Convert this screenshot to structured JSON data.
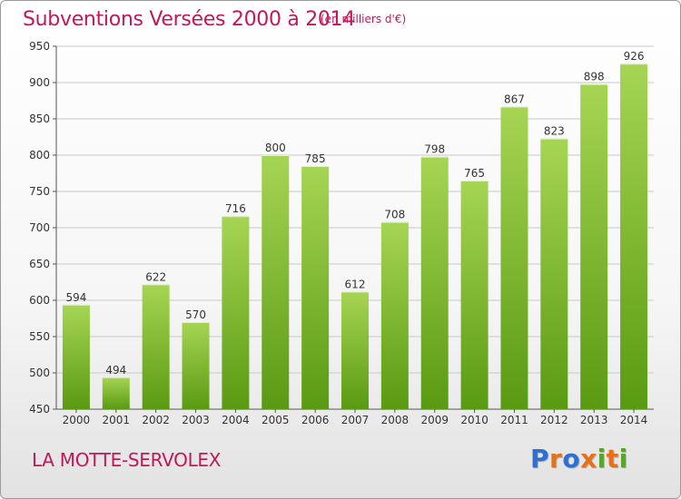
{
  "header": {
    "title": "Subventions Versées 2000 à 2014",
    "subtitle": "(en milliers d'€)"
  },
  "footer": {
    "commune": "LA MOTTE-SERVOLEX",
    "logo": {
      "text": "Proxiti",
      "colors": [
        "#2f6fd0",
        "#e8701a",
        "#2f6fd0",
        "#e8701a",
        "#59a52c",
        "#e8701a",
        "#59a52c"
      ]
    }
  },
  "colors": {
    "bar_light": "#a6d554",
    "bar_dark": "#5a9a12",
    "axis_text": "#333333",
    "grid": "#c8c8c8",
    "title": "#c2185b"
  },
  "chart_data": {
    "type": "bar",
    "categories": [
      "2000",
      "2001",
      "2002",
      "2003",
      "2004",
      "2005",
      "2006",
      "2007",
      "2008",
      "2009",
      "2010",
      "2011",
      "2012",
      "2013",
      "2014"
    ],
    "values": [
      594,
      494,
      622,
      570,
      716,
      800,
      785,
      612,
      708,
      798,
      765,
      867,
      823,
      898,
      926
    ],
    "ylim": [
      450,
      950
    ],
    "yticks": [
      450,
      500,
      550,
      600,
      650,
      700,
      750,
      800,
      850,
      900,
      950
    ],
    "grid": true,
    "data_labels": true
  }
}
